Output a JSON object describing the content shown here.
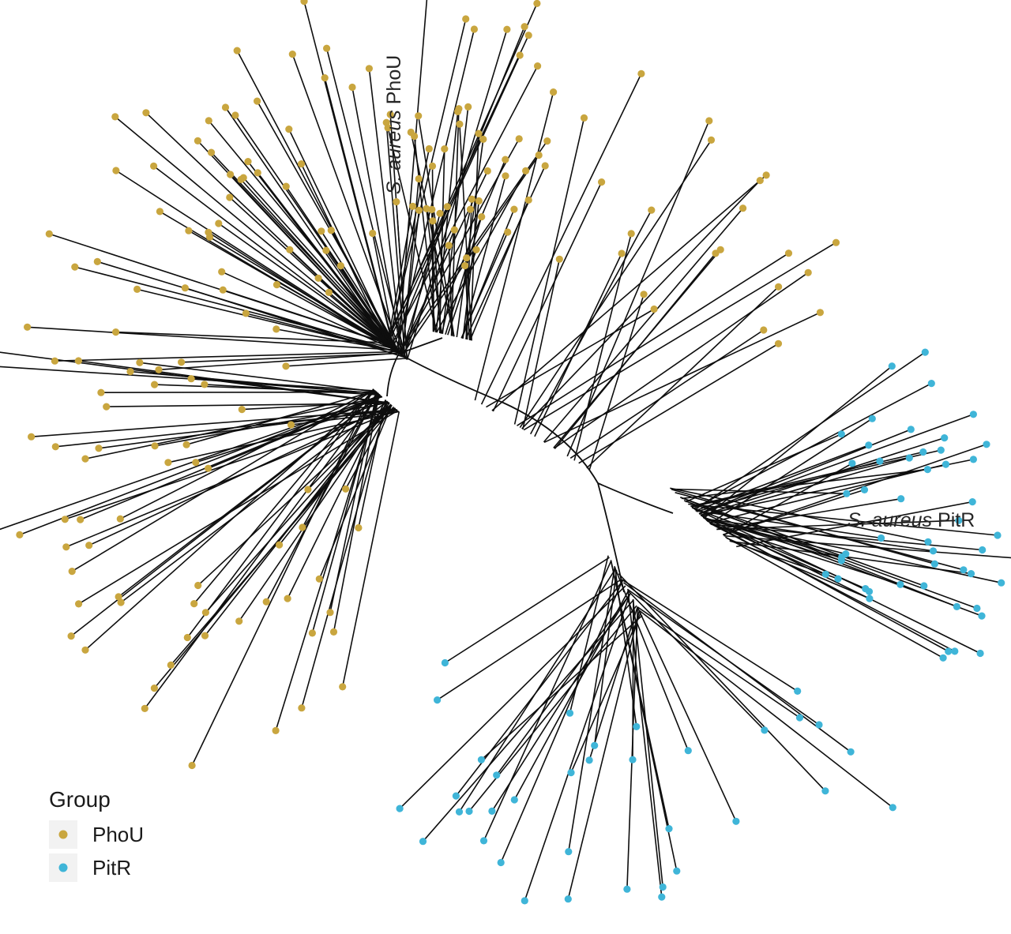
{
  "figure": {
    "background": "#ffffff",
    "branch_color": "#0e0e0e",
    "text_color": "#1a1a1a"
  },
  "legend": {
    "title": "Group",
    "items": [
      {
        "label": "PhoU",
        "color": "#C9A63F"
      },
      {
        "label": "PitR",
        "color": "#3FB5D8"
      }
    ],
    "key_background": "#f2f2f2"
  },
  "annotations": [
    {
      "name": "s-aureus-phou",
      "italic": "S. aureus",
      "plain": "PhoU"
    },
    {
      "name": "s-aureus-pitr",
      "italic": "S. aureus",
      "plain": "PitR"
    }
  ],
  "tree": {
    "type": "unrooted-phylogenetic-tree",
    "branch_color": "#0e0e0e",
    "branch_width": 1.6,
    "spine_width": 1.8,
    "tip_radius": 4.6,
    "groups": {
      "PhoU": "#C9A63F",
      "PitR": "#3FB5D8"
    },
    "spine_paths": [
      "M505,448 Q560,478 637,510 Q720,548 757,612",
      "M757,612 Q812,636 852,650",
      "M757,612 Q772,668 790,750",
      "M505,448 Q532,438 560,428",
      "M505,448 Q492,472 490,502"
    ],
    "clusters": [
      {
        "name": "phoU-upper-left",
        "group": "PhoU",
        "seed": 11,
        "base": [
          488,
          432,
          516,
          456
        ],
        "angle": [
          55,
          186
        ],
        "radius": [
          110,
          470
        ],
        "count": 78
      },
      {
        "name": "phoU-top-center",
        "group": "PhoU",
        "seed": 23,
        "base": [
          548,
          420,
          600,
          432
        ],
        "angle": [
          58,
          104
        ],
        "radius": [
          90,
          290
        ],
        "count": 30
      },
      {
        "name": "phoU-upper-right",
        "group": "PhoU",
        "seed": 37,
        "base": [
          570,
          488,
          748,
          596
        ],
        "angle": [
          24,
          78
        ],
        "radius": [
          200,
          480
        ],
        "count": 24
      },
      {
        "name": "phoU-lower-left",
        "group": "PhoU",
        "seed": 47,
        "base": [
          472,
          492,
          506,
          522
        ],
        "angle": [
          172,
          262
        ],
        "radius": [
          120,
          530
        ],
        "count": 58
      },
      {
        "name": "pitR-right",
        "group": "PitR",
        "seed": 59,
        "base": [
          848,
          618,
          934,
          694
        ],
        "angle": [
          -30,
          44
        ],
        "radius": [
          140,
          400
        ],
        "count": 50
      },
      {
        "name": "pitR-bottom",
        "group": "PitR",
        "seed": 71,
        "base": [
          768,
          700,
          818,
          788
        ],
        "angle": [
          212,
          330
        ],
        "radius": [
          120,
          430
        ],
        "count": 36
      }
    ]
  }
}
